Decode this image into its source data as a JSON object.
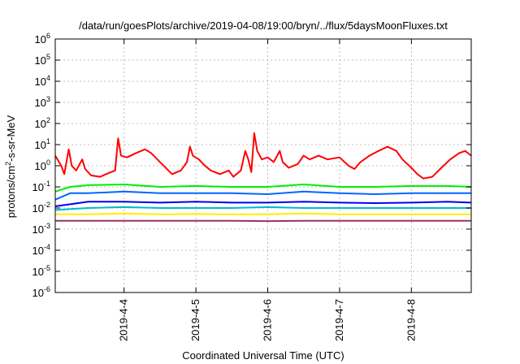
{
  "chart_data": {
    "type": "line",
    "title": "/data/run/goesPlots/archive/2019-04-08/19:00/bryn/../flux/5daysMoonFluxes.txt",
    "xlabel": "Coordinated Universal Time (UTC)",
    "ylabel": {
      "base": "protons/cm",
      "sup": "2",
      "rest": "-s-sr-MeV"
    },
    "yscale": "log",
    "ylim": [
      1e-06,
      1000000.0
    ],
    "xlim": [
      "2019-04-03T01:00",
      "2019-04-08T20:00"
    ],
    "grid": true,
    "legend": "none",
    "x_ticks": [
      {
        "date": "2019-04-04T00:00",
        "label": "2019-4-4"
      },
      {
        "date": "2019-04-05T00:00",
        "label": "2019-4-5"
      },
      {
        "date": "2019-04-06T00:00",
        "label": "2019-4-6"
      },
      {
        "date": "2019-04-07T00:00",
        "label": "2019-4-7"
      },
      {
        "date": "2019-04-08T00:00",
        "label": "2019-4-8"
      }
    ],
    "y_ticks": [
      {
        "value": 1e-06,
        "base": "10",
        "exp": "-6"
      },
      {
        "value": 1e-05,
        "base": "10",
        "exp": "-5"
      },
      {
        "value": 0.0001,
        "base": "10",
        "exp": "-4"
      },
      {
        "value": 0.001,
        "base": "10",
        "exp": "-3"
      },
      {
        "value": 0.01,
        "base": "10",
        "exp": "-2"
      },
      {
        "value": 0.1,
        "base": "10",
        "exp": "-1"
      },
      {
        "value": 1,
        "base": "10",
        "exp": "0"
      },
      {
        "value": 10,
        "base": "10",
        "exp": "1"
      },
      {
        "value": 100,
        "base": "10",
        "exp": "2"
      },
      {
        "value": 1000,
        "base": "10",
        "exp": "3"
      },
      {
        "value": 10000,
        "base": "10",
        "exp": "4"
      },
      {
        "value": 100000,
        "base": "10",
        "exp": "5"
      },
      {
        "value": 1000000,
        "base": "10",
        "exp": "6"
      }
    ],
    "series": [
      {
        "color": "#ff0000",
        "values": [
          [
            "2019-04-03T01:00",
            3.0
          ],
          [
            "2019-04-03T03:00",
            1.0
          ],
          [
            "2019-04-03T04:00",
            0.4
          ],
          [
            "2019-04-03T05:30",
            6.0
          ],
          [
            "2019-04-03T06:30",
            1.0
          ],
          [
            "2019-04-03T08:00",
            0.6
          ],
          [
            "2019-04-03T10:00",
            2.0
          ],
          [
            "2019-04-03T11:00",
            0.7
          ],
          [
            "2019-04-03T13:00",
            0.35
          ],
          [
            "2019-04-03T16:00",
            0.3
          ],
          [
            "2019-04-03T18:00",
            0.4
          ],
          [
            "2019-04-03T21:00",
            0.6
          ],
          [
            "2019-04-03T22:00",
            20
          ],
          [
            "2019-04-03T23:00",
            3.0
          ],
          [
            "2019-04-04T01:00",
            2.5
          ],
          [
            "2019-04-04T04:00",
            4.0
          ],
          [
            "2019-04-04T07:00",
            6.0
          ],
          [
            "2019-04-04T09:00",
            4.0
          ],
          [
            "2019-04-04T12:00",
            1.5
          ],
          [
            "2019-04-04T16:00",
            0.4
          ],
          [
            "2019-04-04T19:00",
            0.6
          ],
          [
            "2019-04-04T21:00",
            1.5
          ],
          [
            "2019-04-04T22:00",
            8.0
          ],
          [
            "2019-04-04T23:00",
            3.0
          ],
          [
            "2019-04-05T01:00",
            2.0
          ],
          [
            "2019-04-05T03:00",
            1.0
          ],
          [
            "2019-04-05T05:00",
            0.6
          ],
          [
            "2019-04-05T08:00",
            0.4
          ],
          [
            "2019-04-05T11:00",
            0.6
          ],
          [
            "2019-04-05T12:30",
            0.3
          ],
          [
            "2019-04-05T15:00",
            0.6
          ],
          [
            "2019-04-05T16:30",
            5.0
          ],
          [
            "2019-04-05T17:30",
            2.0
          ],
          [
            "2019-04-05T18:30",
            0.5
          ],
          [
            "2019-04-05T19:30",
            35
          ],
          [
            "2019-04-05T20:30",
            5.0
          ],
          [
            "2019-04-05T22:00",
            2.0
          ],
          [
            "2019-04-06T00:00",
            2.5
          ],
          [
            "2019-04-06T02:00",
            1.5
          ],
          [
            "2019-04-06T04:00",
            5.0
          ],
          [
            "2019-04-06T05:00",
            1.5
          ],
          [
            "2019-04-06T07:00",
            0.8
          ],
          [
            "2019-04-06T10:00",
            1.2
          ],
          [
            "2019-04-06T12:00",
            3.0
          ],
          [
            "2019-04-06T14:00",
            2.0
          ],
          [
            "2019-04-06T17:00",
            3.0
          ],
          [
            "2019-04-06T20:00",
            2.0
          ],
          [
            "2019-04-07T00:00",
            2.5
          ],
          [
            "2019-04-07T03:00",
            1.0
          ],
          [
            "2019-04-07T05:00",
            0.7
          ],
          [
            "2019-04-07T07:00",
            1.5
          ],
          [
            "2019-04-07T10:00",
            3.0
          ],
          [
            "2019-04-07T13:00",
            5.0
          ],
          [
            "2019-04-07T16:00",
            8.0
          ],
          [
            "2019-04-07T19:00",
            5.0
          ],
          [
            "2019-04-07T21:00",
            2.0
          ],
          [
            "2019-04-08T00:00",
            0.8
          ],
          [
            "2019-04-08T02:00",
            0.4
          ],
          [
            "2019-04-08T04:00",
            0.25
          ],
          [
            "2019-04-08T07:00",
            0.3
          ],
          [
            "2019-04-08T10:00",
            0.8
          ],
          [
            "2019-04-08T13:00",
            2.0
          ],
          [
            "2019-04-08T16:00",
            4.0
          ],
          [
            "2019-04-08T18:00",
            5.0
          ],
          [
            "2019-04-08T20:00",
            3.0
          ]
        ]
      },
      {
        "color": "#00ee00",
        "values": [
          [
            "2019-04-03T01:00",
            0.06
          ],
          [
            "2019-04-03T06:00",
            0.1
          ],
          [
            "2019-04-03T12:00",
            0.12
          ],
          [
            "2019-04-04T00:00",
            0.13
          ],
          [
            "2019-04-04T12:00",
            0.1
          ],
          [
            "2019-04-05T00:00",
            0.11
          ],
          [
            "2019-04-05T12:00",
            0.1
          ],
          [
            "2019-04-06T00:00",
            0.1
          ],
          [
            "2019-04-06T12:00",
            0.13
          ],
          [
            "2019-04-07T00:00",
            0.1
          ],
          [
            "2019-04-07T12:00",
            0.1
          ],
          [
            "2019-04-08T00:00",
            0.11
          ],
          [
            "2019-04-08T12:00",
            0.11
          ],
          [
            "2019-04-08T20:00",
            0.1
          ]
        ]
      },
      {
        "color": "#0066ff",
        "values": [
          [
            "2019-04-03T01:00",
            0.025
          ],
          [
            "2019-04-03T06:00",
            0.05
          ],
          [
            "2019-04-03T12:00",
            0.05
          ],
          [
            "2019-04-04T00:00",
            0.06
          ],
          [
            "2019-04-04T12:00",
            0.05
          ],
          [
            "2019-04-05T00:00",
            0.05
          ],
          [
            "2019-04-05T12:00",
            0.05
          ],
          [
            "2019-04-06T00:00",
            0.045
          ],
          [
            "2019-04-06T12:00",
            0.06
          ],
          [
            "2019-04-07T00:00",
            0.05
          ],
          [
            "2019-04-07T12:00",
            0.045
          ],
          [
            "2019-04-08T00:00",
            0.05
          ],
          [
            "2019-04-08T12:00",
            0.05
          ],
          [
            "2019-04-08T20:00",
            0.05
          ]
        ]
      },
      {
        "color": "#0000ee",
        "values": [
          [
            "2019-04-03T01:00",
            0.012
          ],
          [
            "2019-04-03T06:00",
            0.015
          ],
          [
            "2019-04-03T12:00",
            0.02
          ],
          [
            "2019-04-04T00:00",
            0.02
          ],
          [
            "2019-04-04T12:00",
            0.018
          ],
          [
            "2019-04-05T00:00",
            0.02
          ],
          [
            "2019-04-05T12:00",
            0.018
          ],
          [
            "2019-04-06T00:00",
            0.018
          ],
          [
            "2019-04-06T12:00",
            0.02
          ],
          [
            "2019-04-07T00:00",
            0.018
          ],
          [
            "2019-04-07T12:00",
            0.017
          ],
          [
            "2019-04-08T00:00",
            0.018
          ],
          [
            "2019-04-08T12:00",
            0.02
          ],
          [
            "2019-04-08T20:00",
            0.018
          ]
        ]
      },
      {
        "color": "#00bbcc",
        "values": [
          [
            "2019-04-03T01:00",
            0.008
          ],
          [
            "2019-04-03T12:00",
            0.01
          ],
          [
            "2019-04-04T00:00",
            0.011
          ],
          [
            "2019-04-04T12:00",
            0.01
          ],
          [
            "2019-04-05T00:00",
            0.01
          ],
          [
            "2019-04-05T12:00",
            0.01
          ],
          [
            "2019-04-06T00:00",
            0.011
          ],
          [
            "2019-04-06T12:00",
            0.01
          ],
          [
            "2019-04-07T00:00",
            0.01
          ],
          [
            "2019-04-07T12:00",
            0.01
          ],
          [
            "2019-04-08T00:00",
            0.01
          ],
          [
            "2019-04-08T12:00",
            0.01
          ],
          [
            "2019-04-08T20:00",
            0.01
          ]
        ]
      },
      {
        "color": "#ffee00",
        "values": [
          [
            "2019-04-03T01:00",
            0.005
          ],
          [
            "2019-04-03T12:00",
            0.005
          ],
          [
            "2019-04-04T00:00",
            0.0055
          ],
          [
            "2019-04-04T12:00",
            0.005
          ],
          [
            "2019-04-05T00:00",
            0.0052
          ],
          [
            "2019-04-05T12:00",
            0.005
          ],
          [
            "2019-04-06T00:00",
            0.005
          ],
          [
            "2019-04-06T12:00",
            0.0055
          ],
          [
            "2019-04-07T00:00",
            0.005
          ],
          [
            "2019-04-07T12:00",
            0.005
          ],
          [
            "2019-04-08T00:00",
            0.005
          ],
          [
            "2019-04-08T12:00",
            0.005
          ],
          [
            "2019-04-08T20:00",
            0.005
          ]
        ]
      },
      {
        "color": "#993366",
        "values": [
          [
            "2019-04-03T01:00",
            0.0025
          ],
          [
            "2019-04-03T12:00",
            0.0025
          ],
          [
            "2019-04-04T00:00",
            0.0025
          ],
          [
            "2019-04-04T12:00",
            0.0025
          ],
          [
            "2019-04-05T00:00",
            0.0025
          ],
          [
            "2019-04-05T12:00",
            0.0025
          ],
          [
            "2019-04-06T00:00",
            0.0024
          ],
          [
            "2019-04-06T12:00",
            0.0025
          ],
          [
            "2019-04-07T00:00",
            0.0025
          ],
          [
            "2019-04-07T12:00",
            0.0025
          ],
          [
            "2019-04-08T00:00",
            0.0025
          ],
          [
            "2019-04-08T12:00",
            0.0025
          ],
          [
            "2019-04-08T20:00",
            0.0025
          ]
        ]
      }
    ]
  }
}
